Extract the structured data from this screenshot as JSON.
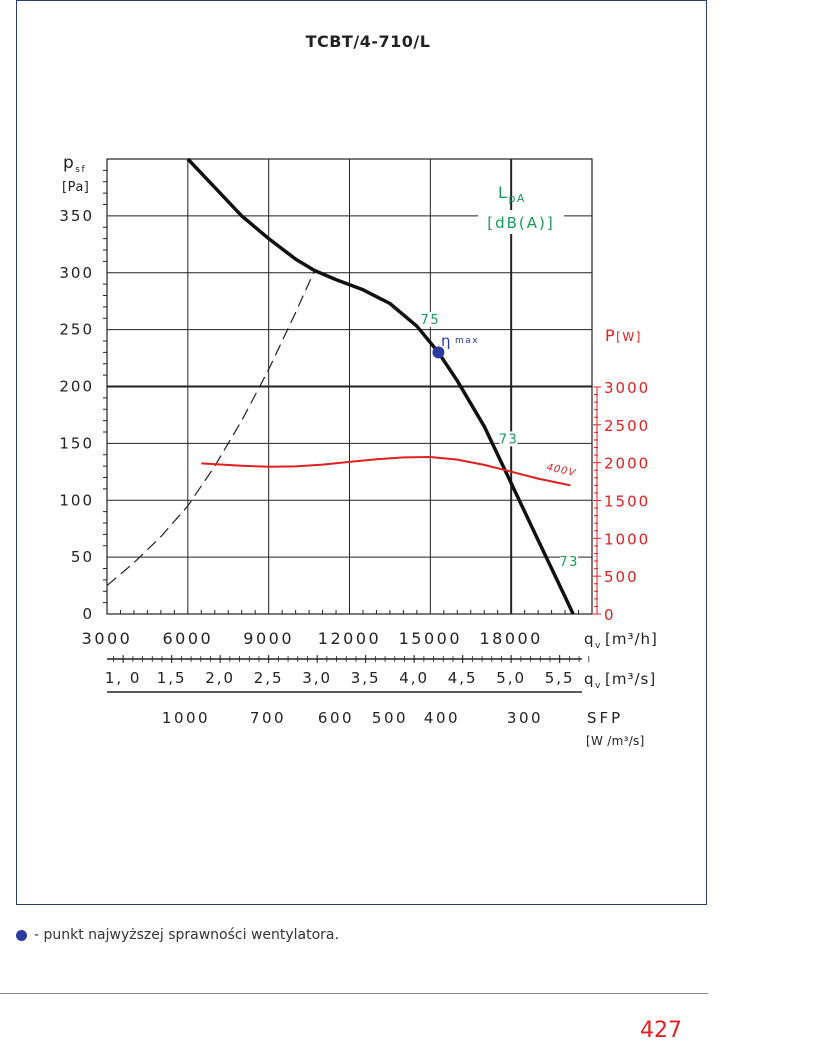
{
  "chart_data": {
    "type": "line",
    "title": "TCBT/4-710/L",
    "y_left": {
      "label_main": "p",
      "label_sub": "sf",
      "unit": "[Pa]",
      "ticks": [
        "0",
        "50",
        "100",
        "150",
        "200",
        "250",
        "300",
        "350"
      ],
      "range": [
        0,
        400
      ]
    },
    "y_right": {
      "label": "P",
      "unit": "[W]",
      "ticks": [
        "0",
        "500",
        "1000",
        "1500",
        "2000",
        "2500",
        "3000"
      ],
      "range": [
        0,
        3000
      ]
    },
    "x_axis_m3h": {
      "ticks": [
        "3000",
        "6000",
        "9000",
        "12000",
        "15000",
        "18000"
      ],
      "label_main": "q",
      "label_sub": "v",
      "unit": "[m³/h]",
      "range": [
        3000,
        21000
      ]
    },
    "x_axis_m3s": {
      "ticks": [
        "1, 0",
        "1,5",
        "2,0",
        "2,5",
        "3,0",
        "3,5",
        "4,0",
        "4,5",
        "5,0",
        "5,5"
      ],
      "label_main": "q",
      "label_sub": "v",
      "unit": "[m³/s]"
    },
    "x_axis_sfp": {
      "ticks": [
        "1000",
        "700",
        "600",
        "500",
        "400",
        "300"
      ],
      "label": "SFP",
      "unit": "[W /m³/s]"
    },
    "sound": {
      "label_main": "L",
      "label_sub": "pA",
      "unit": "[dB(A)]"
    },
    "series": [
      {
        "kind": "pressure",
        "x": [
          6000,
          7000,
          8000,
          9000,
          10000,
          10700,
          11500,
          12500,
          13500,
          14500,
          15300,
          16000,
          17000,
          18000,
          19000,
          20000,
          20300
        ],
        "y": [
          400,
          375,
          350,
          330,
          312,
          302,
          294,
          285,
          273,
          253,
          230,
          205,
          165,
          115,
          65,
          15,
          0
        ]
      },
      {
        "kind": "system",
        "x": [
          3000,
          4000,
          5000,
          6000,
          7000,
          8000,
          9000,
          10000,
          10700
        ],
        "y": [
          25,
          45,
          68,
          95,
          130,
          170,
          215,
          265,
          302
        ]
      },
      {
        "name": "400V",
        "kind": "power",
        "x": [
          6500,
          8000,
          9000,
          10000,
          11000,
          12000,
          13000,
          14000,
          15000,
          16000,
          17000,
          18000,
          19000,
          20200
        ],
        "y": [
          1990,
          1960,
          1945,
          1950,
          1975,
          2010,
          2045,
          2070,
          2075,
          2040,
          1970,
          1880,
          1790,
          1700
        ]
      }
    ],
    "eta_max": {
      "x": 15300,
      "y": 230,
      "label_main": "η",
      "label_sub": "max"
    },
    "sound_labels": [
      {
        "x": 15000,
        "y": 255,
        "text": "75"
      },
      {
        "x": 17900,
        "y": 150,
        "text": "73"
      },
      {
        "x": 20150,
        "y": 42,
        "text": "73"
      }
    ],
    "grid": true
  },
  "colors": {
    "frame": "#2a3f7a",
    "curve": "#111111",
    "power": "#e02020",
    "sound": "#1a9a5a",
    "eta": "#2a3ca0"
  },
  "legend": {
    "text": "- punkt najwyższej sprawności wentylatora."
  },
  "page_number": "427"
}
